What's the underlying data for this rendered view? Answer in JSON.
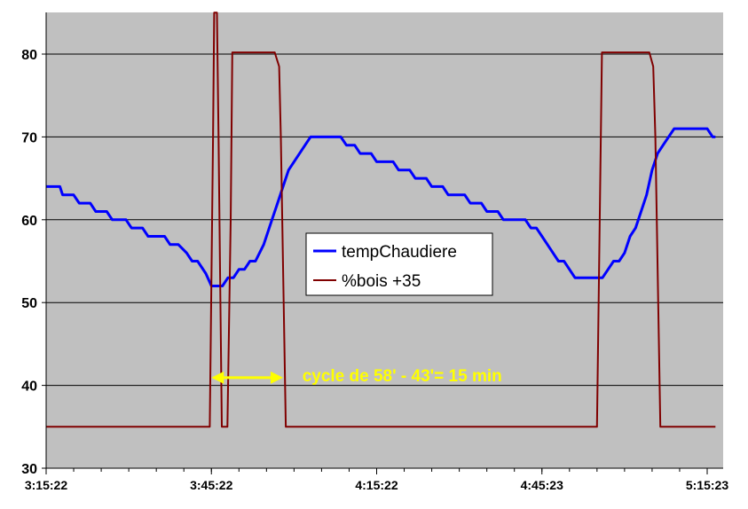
{
  "chart_data": {
    "type": "line",
    "title": "",
    "xlabel": "",
    "ylabel": "",
    "ylim": [
      30,
      85
    ],
    "yticks": [
      30,
      40,
      50,
      60,
      70,
      80
    ],
    "xlim_minutes": [
      0,
      121.5
    ],
    "xticks": [
      {
        "label": "3:15:22",
        "minute": 0
      },
      {
        "label": "3:45:22",
        "minute": 30
      },
      {
        "label": "4:15:22",
        "minute": 60
      },
      {
        "label": "4:45:23",
        "minute": 90
      },
      {
        "label": "5:15:23",
        "minute": 120
      }
    ],
    "grid": true,
    "legend_position": "center",
    "background_color": "#c0c0c0",
    "series": [
      {
        "name": "tempChaudiere",
        "color": "#0000ff",
        "points": [
          [
            0,
            64
          ],
          [
            2.5,
            64
          ],
          [
            3,
            63
          ],
          [
            5,
            63
          ],
          [
            6,
            62
          ],
          [
            8,
            62
          ],
          [
            9,
            61
          ],
          [
            11,
            61
          ],
          [
            12,
            60
          ],
          [
            14.5,
            60
          ],
          [
            15.5,
            59
          ],
          [
            17.5,
            59
          ],
          [
            18.5,
            58
          ],
          [
            21.5,
            58
          ],
          [
            22.5,
            57
          ],
          [
            24,
            57
          ],
          [
            25.5,
            56
          ],
          [
            26.5,
            55
          ],
          [
            27.5,
            55
          ],
          [
            29,
            53.5
          ],
          [
            30,
            52
          ],
          [
            32,
            52
          ],
          [
            33,
            53
          ],
          [
            34,
            53
          ],
          [
            35,
            54
          ],
          [
            36,
            54
          ],
          [
            37,
            55
          ],
          [
            38,
            55
          ],
          [
            39.5,
            57
          ],
          [
            41,
            60
          ],
          [
            42,
            62
          ],
          [
            43,
            64
          ],
          [
            44,
            66
          ],
          [
            45,
            67
          ],
          [
            46,
            68
          ],
          [
            47,
            69
          ],
          [
            48,
            70
          ],
          [
            53.5,
            70
          ],
          [
            54.5,
            69
          ],
          [
            56,
            69
          ],
          [
            57,
            68
          ],
          [
            59,
            68
          ],
          [
            60,
            67
          ],
          [
            63,
            67
          ],
          [
            64,
            66
          ],
          [
            66,
            66
          ],
          [
            67,
            65
          ],
          [
            69,
            65
          ],
          [
            70,
            64
          ],
          [
            72,
            64
          ],
          [
            73,
            63
          ],
          [
            76,
            63
          ],
          [
            77,
            62
          ],
          [
            79,
            62
          ],
          [
            80,
            61
          ],
          [
            82,
            61
          ],
          [
            83,
            60
          ],
          [
            87,
            60
          ],
          [
            88,
            59
          ],
          [
            89,
            59
          ],
          [
            90,
            58
          ],
          [
            91,
            57
          ],
          [
            92,
            56
          ],
          [
            93,
            55
          ],
          [
            94,
            55
          ],
          [
            95,
            54
          ],
          [
            96,
            53
          ],
          [
            101,
            53
          ],
          [
            102,
            54
          ],
          [
            103,
            55
          ],
          [
            104,
            55
          ],
          [
            105,
            56
          ],
          [
            106,
            58
          ],
          [
            107,
            59
          ],
          [
            108,
            61
          ],
          [
            109,
            63
          ],
          [
            110,
            66
          ],
          [
            111,
            68
          ],
          [
            112,
            69
          ],
          [
            113,
            70
          ],
          [
            114,
            71
          ],
          [
            120,
            71
          ],
          [
            121,
            70
          ],
          [
            121.5,
            70
          ]
        ]
      },
      {
        "name": "%bois +35",
        "color": "#800000",
        "points": [
          [
            0,
            35
          ],
          [
            29.7,
            35
          ],
          [
            30.3,
            70
          ],
          [
            30.5,
            85
          ],
          [
            31,
            85
          ],
          [
            31.3,
            70
          ],
          [
            31.9,
            35
          ],
          [
            32.9,
            35
          ],
          [
            33.5,
            60
          ],
          [
            33.8,
            80.2
          ],
          [
            41.5,
            80.2
          ],
          [
            42.3,
            78.5
          ],
          [
            42.6,
            70
          ],
          [
            43.5,
            35
          ],
          [
            100,
            35
          ],
          [
            100.5,
            60
          ],
          [
            100.9,
            80.2
          ],
          [
            109.5,
            80.2
          ],
          [
            110.2,
            78.5
          ],
          [
            110.6,
            70
          ],
          [
            111.5,
            35
          ],
          [
            121.5,
            35
          ]
        ]
      }
    ],
    "annotations": [
      {
        "text": "cycle de 58' - 43'= 15 min",
        "color": "#ffff00",
        "arrow_from_minute": 30,
        "arrow_to_minute": 43,
        "arrow_y": 40.5,
        "text_minute": 46.5,
        "text_y": 40.5
      }
    ]
  }
}
